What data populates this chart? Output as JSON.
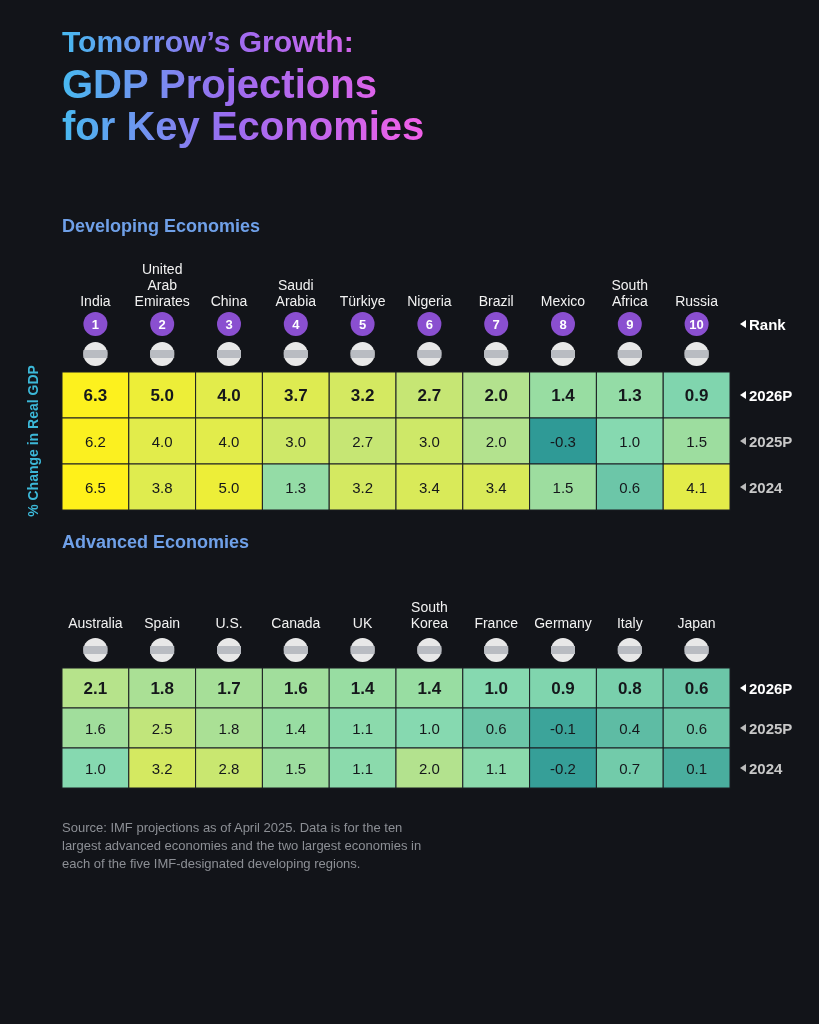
{
  "chart_data": [
    {
      "type": "heatmap",
      "title": "Tomorrow’s Growth: GDP Projections for Key Economies",
      "subtitle": "Developing Economies",
      "ylabel": "% Change in Real GDP",
      "categories": [
        "India",
        "United Arab Emirates",
        "China",
        "Saudi Arabia",
        "Türkiye",
        "Nigeria",
        "Brazil",
        "Mexico",
        "South Africa",
        "Russia"
      ],
      "y_categories": [
        "2026P",
        "2025P",
        "2024"
      ],
      "cells": [
        [
          6.3,
          5.0,
          4.0,
          3.7,
          3.2,
          2.7,
          2.0,
          1.4,
          1.3,
          0.9
        ],
        [
          6.2,
          4.0,
          4.0,
          3.0,
          2.7,
          3.0,
          2.0,
          -0.3,
          1.0,
          1.5
        ],
        [
          6.5,
          3.8,
          5.0,
          1.3,
          3.2,
          3.4,
          3.4,
          1.5,
          0.6,
          4.1
        ]
      ],
      "cell_labels": [
        [
          "6.3",
          "5.0",
          "4.0",
          "3.7",
          "3.2",
          "2.7",
          "2.0",
          "1.4",
          "1.3",
          "0.9"
        ],
        [
          "6.2",
          "4.0",
          "4.0",
          "3.0",
          "2.7",
          "3.0",
          "2.0",
          "-0.3",
          "1.0",
          "1.5"
        ],
        [
          "6.5",
          "3.8",
          "5.0",
          "1.3",
          "3.2",
          "3.4",
          "3.4",
          "1.5",
          "0.6",
          "4.1"
        ]
      ],
      "data_labels": true,
      "annotations": [
        "Rank",
        "1",
        "2",
        "3",
        "4",
        "5",
        "6",
        "7",
        "8",
        "9",
        "10"
      ]
    },
    {
      "type": "heatmap",
      "subtitle": "Advanced Economies",
      "categories": [
        "Australia",
        "Spain",
        "U.S.",
        "Canada",
        "UK",
        "South Korea",
        "France",
        "Germany",
        "Italy",
        "Japan"
      ],
      "y_categories": [
        "2026P",
        "2025P",
        "2024"
      ],
      "cells": [
        [
          2.1,
          1.8,
          1.7,
          1.6,
          1.4,
          1.4,
          1.0,
          0.9,
          0.8,
          0.6
        ],
        [
          1.6,
          2.5,
          1.8,
          1.4,
          1.1,
          1.0,
          0.6,
          -0.1,
          0.4,
          0.6
        ],
        [
          1.0,
          3.2,
          2.8,
          1.5,
          1.1,
          2.0,
          1.1,
          -0.2,
          0.7,
          0.1
        ]
      ],
      "cell_labels": [
        [
          "2.1",
          "1.8",
          "1.7",
          "1.6",
          "1.4",
          "1.4",
          "1.0",
          "0.9",
          "0.8",
          "0.6"
        ],
        [
          "1.6",
          "2.5",
          "1.8",
          "1.4",
          "1.1",
          "1.0",
          "0.6",
          "-0.1",
          "0.4",
          "0.6"
        ],
        [
          "1.0",
          "3.2",
          "2.8",
          "1.5",
          "1.1",
          "2.0",
          "1.1",
          "-0.2",
          "0.7",
          "0.1"
        ]
      ],
      "data_labels": true,
      "annotations": [
        "Source: IMF projections as of April 2025. Data is for the ten largest advanced economies and the two largest economies in each of the five IMF-designated developing regions."
      ]
    }
  ]
}
